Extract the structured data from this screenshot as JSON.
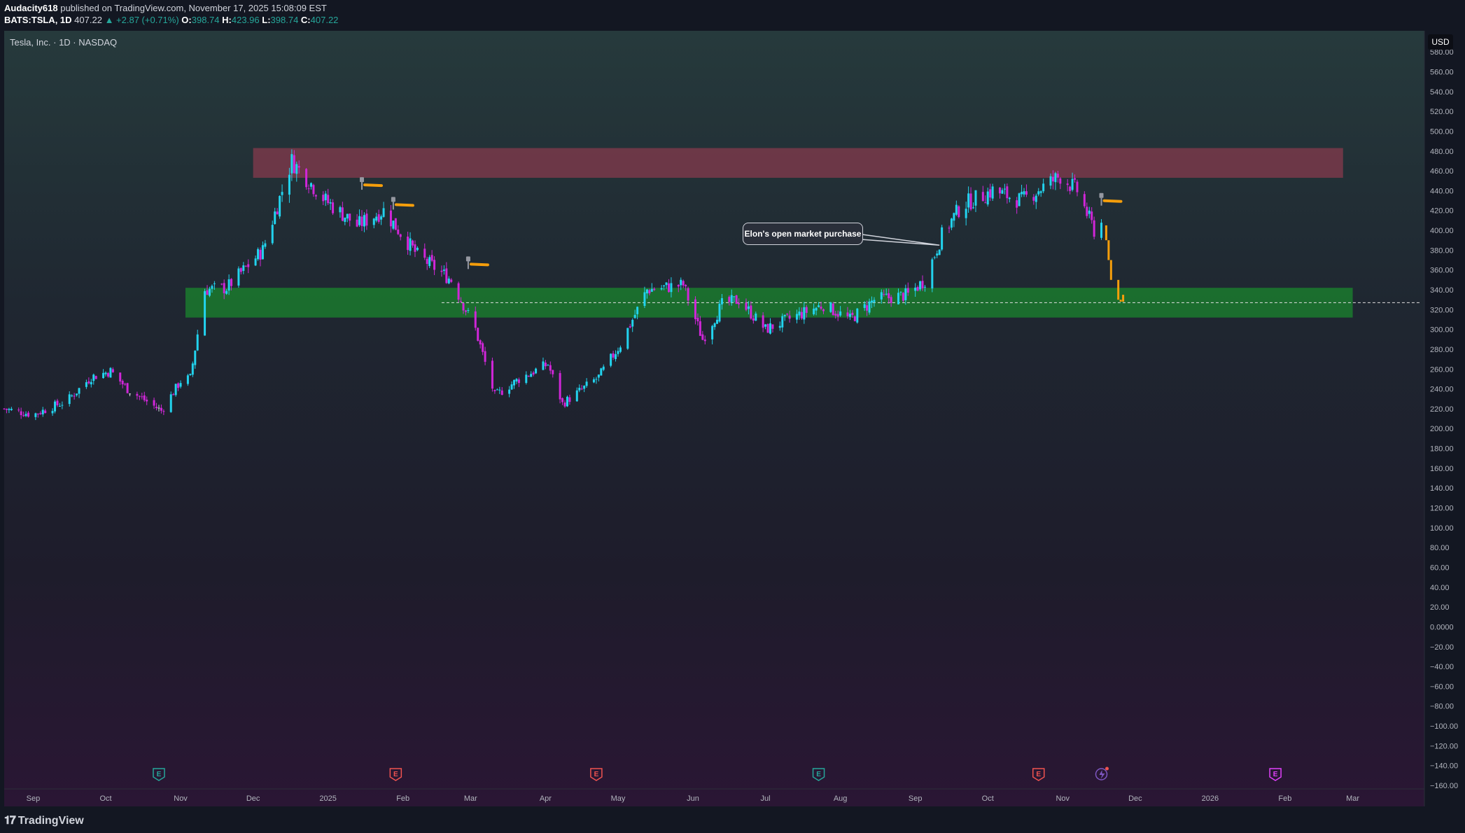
{
  "header": {
    "author": "Audacity618",
    "published": "published on TradingView.com, November 17, 2025 15:08:09 EST",
    "symbol_line": "BATS:TSLA, 1D",
    "last_price": "407.22",
    "change": "▲ +2.87 (+0.71%)",
    "o_label": "O:",
    "o": "398.74",
    "h_label": "H:",
    "h": "423.96",
    "l_label": "L:",
    "l": "398.74",
    "c_label": "C:",
    "c": "407.22"
  },
  "symbol_title": "Tesla, Inc. · 1D · NASDAQ",
  "currency": "USD",
  "annotation": "Elon's open market purchase",
  "footer_logo": "TradingView",
  "colors": {
    "up": "#22d3ee",
    "down": "#d026d8",
    "projection": "#f59e0b",
    "resistance_zone": "#8b3a4e",
    "support_zone": "#1b7a2e",
    "earnings_green": "#26a69a",
    "earnings_red": "#ef5350",
    "earnings_magenta": "#e040fb"
  },
  "chart_data": {
    "type": "candlestick",
    "ylim": [
      -160,
      590
    ],
    "y_ticks": [
      580,
      560,
      540,
      520,
      500,
      480,
      460,
      440,
      420,
      400,
      380,
      360,
      340,
      320,
      300,
      280,
      260,
      240,
      220,
      200,
      180,
      160,
      140,
      120,
      100,
      80,
      60,
      40,
      20,
      0,
      -20,
      -40,
      -60,
      -80,
      -100,
      -120,
      -140,
      -160
    ],
    "y_tick_labels": [
      "580.00",
      "560.00",
      "540.00",
      "520.00",
      "500.00",
      "480.00",
      "460.00",
      "440.00",
      "420.00",
      "400.00",
      "380.00",
      "360.00",
      "340.00",
      "320.00",
      "300.00",
      "280.00",
      "260.00",
      "240.00",
      "220.00",
      "200.00",
      "180.00",
      "160.00",
      "140.00",
      "120.00",
      "100.00",
      "80.00",
      "60.00",
      "40.00",
      "20.00",
      "0.0000",
      "−20.00",
      "−40.00",
      "−60.00",
      "−80.00",
      "−100.00",
      "−120.00",
      "−140.00",
      "−160.00"
    ],
    "x_labels": [
      "Sep",
      "Oct",
      "Nov",
      "Dec",
      "2025",
      "Feb",
      "Mar",
      "Apr",
      "May",
      "Jun",
      "Jul",
      "Aug",
      "Sep",
      "Oct",
      "Nov",
      "Dec",
      "2026",
      "Feb",
      "Mar"
    ],
    "x_label_dates": [
      "2024-09-01",
      "2024-10-01",
      "2024-11-01",
      "2024-12-01",
      "2025-01-01",
      "2025-02-01",
      "2025-03-01",
      "2025-04-01",
      "2025-05-01",
      "2025-06-01",
      "2025-07-01",
      "2025-08-01",
      "2025-09-01",
      "2025-10-01",
      "2025-11-01",
      "2025-12-01",
      "2026-01-01",
      "2026-02-01",
      "2026-03-01"
    ],
    "price_path": [
      [
        "2024-08-20",
        220
      ],
      [
        "2024-09-01",
        214
      ],
      [
        "2024-09-15",
        228
      ],
      [
        "2024-09-25",
        252
      ],
      [
        "2024-10-03",
        258
      ],
      [
        "2024-10-10",
        240
      ],
      [
        "2024-10-24",
        218
      ],
      [
        "2024-11-01",
        248
      ],
      [
        "2024-11-05",
        251
      ],
      [
        "2024-11-11",
        340
      ],
      [
        "2024-11-20",
        342
      ],
      [
        "2024-12-05",
        380
      ],
      [
        "2024-12-17",
        470
      ],
      [
        "2024-12-31",
        430
      ],
      [
        "2025-01-13",
        405
      ],
      [
        "2025-01-24",
        420
      ],
      [
        "2025-02-07",
        375
      ],
      [
        "2025-02-21",
        350
      ],
      [
        "2025-03-03",
        300
      ],
      [
        "2025-03-11",
        233
      ],
      [
        "2025-03-21",
        250
      ],
      [
        "2025-04-02",
        265
      ],
      [
        "2025-04-08",
        225
      ],
      [
        "2025-04-23",
        252
      ],
      [
        "2025-05-02",
        285
      ],
      [
        "2025-05-13",
        340
      ],
      [
        "2025-05-28",
        345
      ],
      [
        "2025-06-05",
        290
      ],
      [
        "2025-06-13",
        325
      ],
      [
        "2025-06-20",
        330
      ],
      [
        "2025-07-01",
        300
      ],
      [
        "2025-07-15",
        315
      ],
      [
        "2025-07-25",
        325
      ],
      [
        "2025-08-05",
        310
      ],
      [
        "2025-08-15",
        330
      ],
      [
        "2025-08-29",
        335
      ],
      [
        "2025-09-05",
        350
      ],
      [
        "2025-09-12",
        395
      ],
      [
        "2025-09-20",
        425
      ],
      [
        "2025-10-03",
        440
      ],
      [
        "2025-10-15",
        430
      ],
      [
        "2025-10-31",
        455
      ],
      [
        "2025-11-07",
        440
      ],
      [
        "2025-11-14",
        400
      ],
      [
        "2025-11-17",
        407.22
      ]
    ],
    "gap_ranges": [
      [
        "2024-10-11",
        "2024-10-23"
      ]
    ],
    "projection_path": [
      [
        "2025-11-17",
        405
      ],
      [
        "2025-11-19",
        390
      ],
      [
        "2025-11-20",
        370
      ],
      [
        "2025-11-21",
        350
      ],
      [
        "2025-11-24",
        330
      ],
      [
        "2025-11-25",
        328
      ],
      [
        "2025-11-26",
        335
      ]
    ],
    "zones": [
      {
        "name": "resistance",
        "from": "2024-12-01",
        "to": "2026-02-25",
        "low": 453,
        "high": 483
      },
      {
        "name": "support",
        "from": "2024-11-03",
        "to": "2026-03-01",
        "low": 312,
        "high": 342
      }
    ],
    "dashed_level": {
      "value": 327,
      "from": "2025-02-17"
    },
    "hammer_markers": [
      {
        "date": "2025-01-15",
        "value": 448
      },
      {
        "date": "2025-01-28",
        "value": 428
      },
      {
        "date": "2025-02-28",
        "value": 368
      },
      {
        "date": "2025-11-17",
        "value": 432
      }
    ],
    "callout_target": {
      "date": "2025-09-11",
      "value": 385
    },
    "events": [
      {
        "date": "2024-10-23",
        "kind": "E",
        "color": "green"
      },
      {
        "date": "2025-01-29",
        "kind": "E",
        "color": "red"
      },
      {
        "date": "2025-04-22",
        "kind": "E",
        "color": "red"
      },
      {
        "date": "2025-07-23",
        "kind": "E",
        "color": "green"
      },
      {
        "date": "2025-10-22",
        "kind": "E",
        "color": "red"
      },
      {
        "date": "2025-11-17",
        "kind": "dividend-bolt",
        "color": "purple"
      },
      {
        "date": "2026-01-28",
        "kind": "E",
        "color": "magenta"
      }
    ]
  }
}
